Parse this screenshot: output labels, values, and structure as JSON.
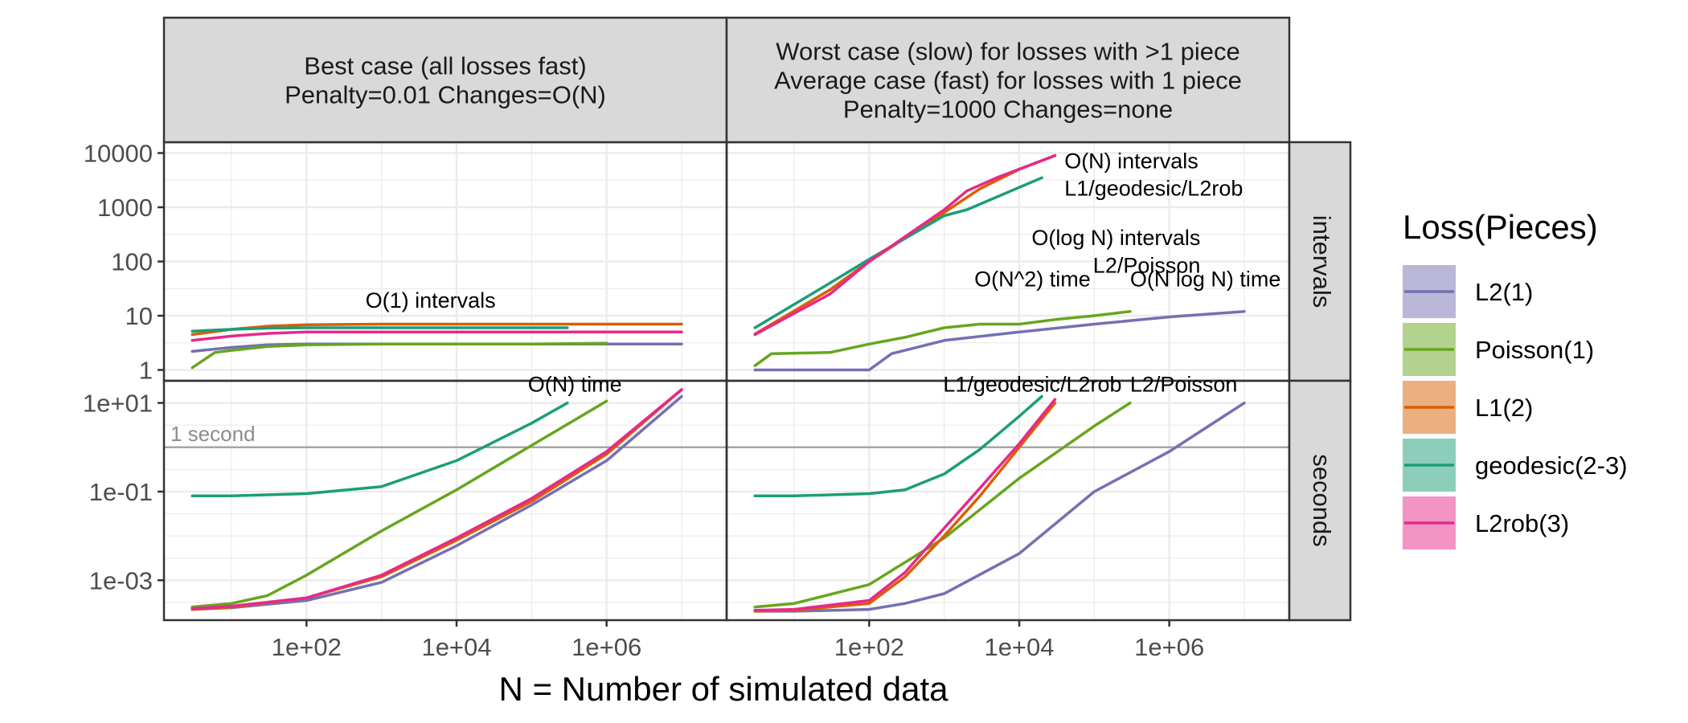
{
  "colors": {
    "L2(1)": "#7570b3",
    "Poisson(1)": "#66a61e",
    "L1(2)": "#d95f02",
    "geodesic(2-3)": "#1b9e77",
    "L2rob(3)": "#e7298a",
    "strip_fill": "#d9d9d9",
    "reference_line": "#a6a6a6"
  },
  "chart_data": {
    "type": "line",
    "xlabel": "N = Number of simulated data",
    "x_scale": "log10",
    "x_tick_labels": [
      "1e+02",
      "1e+04",
      "1e+06"
    ],
    "legend": {
      "title": "Loss(Pieces)",
      "position": "right",
      "entries": [
        "L2(1)",
        "Poisson(1)",
        "L1(2)",
        "geodesic(2-3)",
        "L2rob(3)"
      ]
    },
    "columns": [
      {
        "strip": [
          "Best case (all losses fast)",
          "Penalty=0.01 Changes=O(N)"
        ]
      },
      {
        "strip": [
          "Worst case (slow) for losses with >1 piece",
          "Average case (fast) for losses with 1 piece",
          "Penalty=1000 Changes=none"
        ]
      }
    ],
    "rows": [
      {
        "strip": "intervals",
        "y_scale": "log10",
        "y_tick_labels": [
          "1",
          "10",
          "100",
          "1000",
          "10000"
        ],
        "y_ticks": [
          1,
          10,
          100,
          1000,
          10000
        ]
      },
      {
        "strip": "seconds",
        "y_scale": "log10",
        "y_tick_labels": [
          "1e-03",
          "1e-01",
          "1e+01"
        ],
        "y_ticks": [
          0.001,
          0.1,
          10
        ]
      }
    ],
    "reference_line": {
      "row": 1,
      "y": 1,
      "label": "1 second"
    },
    "annotations": [
      {
        "panel": [
          0,
          0
        ],
        "x": 4500,
        "y": 14,
        "anchor": "middle",
        "text": "O(1) intervals"
      },
      {
        "panel": [
          1,
          0
        ],
        "x": 40000,
        "y": 5200,
        "anchor": "start",
        "text": "O(N) intervals"
      },
      {
        "panel": [
          1,
          0
        ],
        "x": 40000,
        "y": 1650,
        "anchor": "start",
        "text": "L1/geodesic/L2rob"
      },
      {
        "panel": [
          1,
          0
        ],
        "x": 2600000,
        "y": 200,
        "anchor": "end",
        "text": "O(log N) intervals"
      },
      {
        "panel": [
          1,
          0
        ],
        "x": 2600000,
        "y": 62,
        "anchor": "end",
        "text": "L2/Poisson"
      },
      {
        "panel": [
          0,
          1
        ],
        "x": 1600000,
        "y": 18,
        "anchor": "end",
        "text": "O(N) time"
      },
      {
        "panel": [
          1,
          1
        ],
        "x": 15000,
        "y": 4300,
        "anchor": "middle",
        "text": "O(N^2) time"
      },
      {
        "panel": [
          1,
          1
        ],
        "x": 15000,
        "y": 18,
        "anchor": "middle",
        "text": "L1/geodesic/L2rob"
      },
      {
        "panel": [
          1,
          1
        ],
        "x": 300000,
        "y": 18,
        "anchor": "start",
        "text": "L2/Poisson"
      },
      {
        "panel": [
          1,
          1
        ],
        "x": 300000,
        "y": 4300,
        "anchor": "start",
        "text": "O(N log N) time"
      }
    ],
    "panels": [
      {
        "col": 0,
        "row": 0,
        "series": [
          {
            "name": "L2(1)",
            "x": [
              3,
              10,
              30,
              100,
              1000,
              10000,
              100000,
              1000000,
              10000000
            ],
            "y": [
              2.2,
              2.6,
              2.9,
              3,
              3,
              3,
              3,
              3,
              3
            ]
          },
          {
            "name": "Poisson(1)",
            "x": [
              3,
              6,
              10,
              30,
              100,
              1000,
              10000,
              100000,
              1000000
            ],
            "y": [
              1.1,
              2.1,
              2.3,
              2.7,
              2.9,
              3,
              3,
              3,
              3.1
            ]
          },
          {
            "name": "L1(2)",
            "x": [
              3,
              10,
              30,
              100,
              1000,
              10000,
              100000,
              1000000,
              10000000
            ],
            "y": [
              4.5,
              5.6,
              6.4,
              6.8,
              7,
              7,
              7,
              7,
              7
            ]
          },
          {
            "name": "geodesic(2-3)",
            "x": [
              3,
              10,
              30,
              100,
              1000,
              10000,
              100000,
              300000
            ],
            "y": [
              5.2,
              5.6,
              5.9,
              6,
              6,
              6,
              6,
              6
            ]
          },
          {
            "name": "L2rob(3)",
            "x": [
              3,
              10,
              30,
              100,
              1000,
              10000,
              100000,
              1000000,
              10000000
            ],
            "y": [
              3.5,
              4.2,
              4.7,
              5,
              5,
              5,
              5,
              5,
              5
            ]
          }
        ]
      },
      {
        "col": 1,
        "row": 0,
        "series": [
          {
            "name": "L2(1)",
            "x": [
              3,
              10,
              100,
              200,
              1000,
              10000,
              100000,
              1000000,
              10000000
            ],
            "y": [
              1,
              1,
              1,
              2,
              3.5,
              5,
              7,
              9.5,
              12
            ]
          },
          {
            "name": "Poisson(1)",
            "x": [
              3,
              5,
              30,
              100,
              300,
              1000,
              3000,
              10000,
              30000,
              100000,
              300000
            ],
            "y": [
              1.2,
              2,
              2.1,
              3,
              4,
              6,
              7,
              7,
              8.5,
              10,
              12
            ]
          },
          {
            "name": "L1(2)",
            "x": [
              3,
              30,
              100,
              1000,
              3000,
              10000,
              30000
            ],
            "y": [
              4.6,
              30,
              100,
              800,
              2200,
              5000,
              9000
            ]
          },
          {
            "name": "geodesic(2-3)",
            "x": [
              3,
              30,
              100,
              1000,
              2000,
              20000
            ],
            "y": [
              6,
              40,
              110,
              700,
              900,
              3500
            ]
          },
          {
            "name": "L2rob(3)",
            "x": [
              3,
              30,
              100,
              1000,
              2000,
              5000,
              30000
            ],
            "y": [
              4.5,
              25,
              100,
              900,
              2000,
              3500,
              9000
            ]
          }
        ]
      },
      {
        "col": 0,
        "row": 1,
        "series": [
          {
            "name": "L2(1)",
            "x": [
              3,
              10,
              100,
              1000,
              10000,
              100000,
              1000000,
              10000000
            ],
            "y": [
              0.00022,
              0.00024,
              0.00035,
              0.0009,
              0.006,
              0.05,
              0.5,
              14
            ]
          },
          {
            "name": "Poisson(1)",
            "x": [
              3,
              10,
              30,
              100,
              1000,
              10000,
              100000,
              1000000
            ],
            "y": [
              0.00025,
              0.0003,
              0.00045,
              0.0013,
              0.013,
              0.11,
              1.1,
              11
            ]
          },
          {
            "name": "L1(2)",
            "x": [
              3,
              10,
              100,
              1000,
              10000,
              100000,
              1000000,
              10000000
            ],
            "y": [
              0.00022,
              0.00025,
              0.0004,
              0.0012,
              0.008,
              0.06,
              0.7,
              20
            ]
          },
          {
            "name": "geodesic(2-3)",
            "x": [
              3,
              10,
              100,
              1000,
              10000,
              100000,
              300000
            ],
            "y": [
              0.08,
              0.08,
              0.09,
              0.13,
              0.5,
              3.5,
              10
            ]
          },
          {
            "name": "L2rob(3)",
            "x": [
              3,
              10,
              100,
              1000,
              10000,
              100000,
              1000000,
              10000000
            ],
            "y": [
              0.00023,
              0.00026,
              0.0004,
              0.0013,
              0.009,
              0.07,
              0.8,
              20
            ]
          }
        ]
      },
      {
        "col": 1,
        "row": 1,
        "series": [
          {
            "name": "L2(1)",
            "x": [
              3,
              10,
              100,
              300,
              1000,
              10000,
              100000,
              1000000,
              10000000
            ],
            "y": [
              0.0002,
              0.0002,
              0.00022,
              0.0003,
              0.0005,
              0.004,
              0.1,
              0.8,
              10
            ]
          },
          {
            "name": "Poisson(1)",
            "x": [
              3,
              10,
              100,
              1000,
              10000,
              100000,
              300000
            ],
            "y": [
              0.00025,
              0.0003,
              0.0008,
              0.009,
              0.2,
              3,
              10
            ]
          },
          {
            "name": "L1(2)",
            "x": [
              3,
              10,
              100,
              300,
              1000,
              3000,
              10000,
              30000
            ],
            "y": [
              0.0002,
              0.00021,
              0.0003,
              0.0012,
              0.01,
              0.08,
              1,
              10
            ]
          },
          {
            "name": "geodesic(2-3)",
            "x": [
              3,
              10,
              100,
              300,
              1000,
              3000,
              10000,
              20000
            ],
            "y": [
              0.08,
              0.08,
              0.09,
              0.11,
              0.25,
              0.9,
              5,
              14
            ]
          },
          {
            "name": "L2rob(3)",
            "x": [
              3,
              10,
              100,
              300,
              1000,
              3000,
              10000,
              30000
            ],
            "y": [
              0.00021,
              0.00022,
              0.00035,
              0.0015,
              0.015,
              0.12,
              1.2,
              12
            ]
          }
        ]
      }
    ]
  }
}
